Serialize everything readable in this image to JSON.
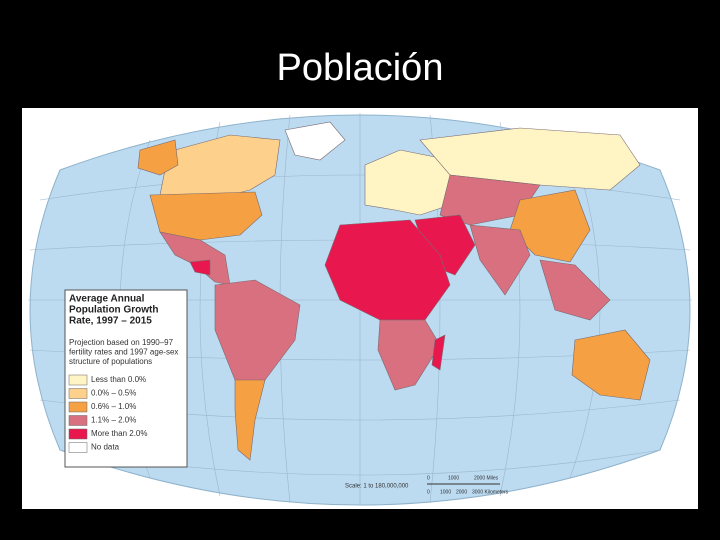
{
  "title": "Población",
  "legend": {
    "title_lines": [
      "Average Annual",
      "Population Growth",
      "Rate, 1997 – 2015"
    ],
    "note_lines": [
      "Projection based on 1990–97",
      "fertility rates and 1997 age-sex",
      "structure of populations"
    ],
    "items": [
      {
        "label": "Less than 0.0%",
        "color": "#fff4c4"
      },
      {
        "label": "0.0% – 0.5%",
        "color": "#fdd08c"
      },
      {
        "label": "0.6% – 1.0%",
        "color": "#f4a043"
      },
      {
        "label": "1.1% – 2.0%",
        "color": "#d8707f"
      },
      {
        "label": "More than 2.0%",
        "color": "#e8184f"
      },
      {
        "label": "No data",
        "color": "#ffffff"
      }
    ]
  },
  "scale": {
    "miles": [
      "0",
      "1000",
      "2000 Miles"
    ],
    "ratio": "Scale: 1 to 180,000,000",
    "kilometers": [
      "0",
      "1000",
      "2000",
      "3000 Kilometers"
    ]
  }
}
